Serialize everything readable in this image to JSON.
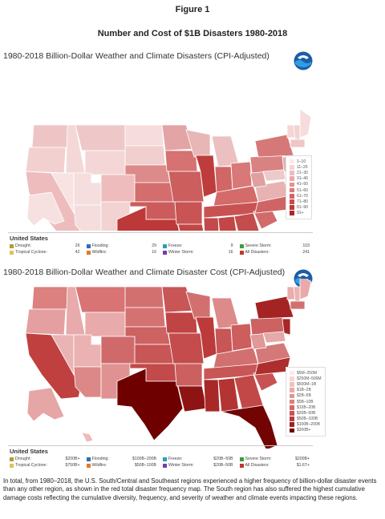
{
  "figure_label": "Figure 1",
  "figure_title": "Number and Cost of $1B Disasters 1980-2018",
  "maps": [
    {
      "title": "1980-2018 Billion-Dollar Weather and Climate Disasters (CPI-Adjusted)",
      "region": "United States",
      "scale_labels": [
        "1–10",
        "11–20",
        "21–30",
        "31–40",
        "41–50",
        "51–60",
        "61–70",
        "71–80",
        "81–90",
        "91+"
      ],
      "scale_colors": [
        "#fbeaea",
        "#f6d4d4",
        "#f0bcbc",
        "#eaa6a6",
        "#e49090",
        "#dc7878",
        "#d46262",
        "#c94c4c",
        "#bd3838",
        "#b22424"
      ],
      "categories": [
        {
          "label": "Drought:",
          "value": "26",
          "color": "#b89a2e"
        },
        {
          "label": "Flooding:",
          "value": "29",
          "color": "#2e6fb8"
        },
        {
          "label": "Freeze:",
          "value": "9",
          "color": "#2aa0b0"
        },
        {
          "label": "Severe Storm:",
          "value": "103",
          "color": "#3a9e3a"
        },
        {
          "label": "Tropical Cyclone:",
          "value": "42",
          "color": "#e0c25a"
        },
        {
          "label": "Wildfire:",
          "value": "16",
          "color": "#e07a2a"
        },
        {
          "label": "Winter Storm:",
          "value": "16",
          "color": "#7a3ab0"
        },
        {
          "label": "All Disasters:",
          "value": "241",
          "color": "#c0392b"
        }
      ]
    },
    {
      "title": "1980-2018 Billion-Dollar Weather and Climate Disaster Cost (CPI-Adjusted)",
      "region": "United States",
      "scale_labels": [
        "$5M–250M",
        "$250M–500M",
        "$500M–1B",
        "$1B–2B",
        "$2B–5B",
        "$5B–10B",
        "$10B–20B",
        "$20B–50B",
        "$50B–100B",
        "$100B–200B",
        "$200B+"
      ],
      "scale_colors": [
        "#fbeaea",
        "#f6d6d6",
        "#f0c0c0",
        "#eaaaaa",
        "#e39494",
        "#dc7e7e",
        "#d46868",
        "#c85252",
        "#b83a3a",
        "#9e2020",
        "#6e0000"
      ],
      "categories": [
        {
          "label": "Drought:",
          "value": "$200B+",
          "color": "#b89a2e"
        },
        {
          "label": "Flooding:",
          "value": "$100B–200B",
          "color": "#2e6fb8"
        },
        {
          "label": "Freeze:",
          "value": "$20B–50B",
          "color": "#2aa0b0"
        },
        {
          "label": "Severe Storm:",
          "value": "$200B+",
          "color": "#3a9e3a"
        },
        {
          "label": "Tropical Cyclone:",
          "value": "$750B+",
          "color": "#e0c25a"
        },
        {
          "label": "Wildfire:",
          "value": "$50B–100B",
          "color": "#e07a2a"
        },
        {
          "label": "Winter Storm:",
          "value": "$20B–50B",
          "color": "#7a3ab0"
        },
        {
          "label": "All Disasters:",
          "value": "$1.6T+",
          "color": "#c0392b"
        }
      ]
    }
  ],
  "caption": "In total, from 1980–2018, the U.S. South/Central and Southeast regions experienced a higher frequency of billion-dollar disaster events than any other region, as shown in the red total disaster frequency map. The South region has also suffered the highest cumulative damage costs reflecting the cumulative diversity, frequency, and severity of weather and climate events impacting these regions."
}
